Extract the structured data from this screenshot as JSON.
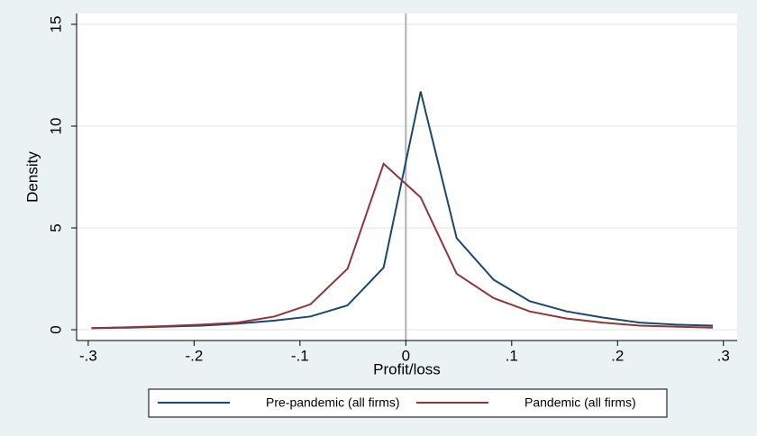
{
  "chart_data": {
    "type": "line",
    "xlabel": "Profit/loss",
    "ylabel": "Density",
    "x": [
      -0.297,
      -0.262,
      -0.228,
      -0.193,
      -0.159,
      -0.124,
      -0.09,
      -0.055,
      -0.021,
      0.014,
      0.048,
      0.083,
      0.117,
      0.152,
      0.186,
      0.221,
      0.255,
      0.29
    ],
    "series": [
      {
        "name": "Pre-pandemic (all firms)",
        "color": "#1a476f",
        "values": [
          0.08,
          0.1,
          0.15,
          0.2,
          0.3,
          0.45,
          0.65,
          1.2,
          3.05,
          11.7,
          4.5,
          2.45,
          1.4,
          0.9,
          0.6,
          0.35,
          0.25,
          0.2
        ]
      },
      {
        "name": "Pandemic (all firms)",
        "color": "#90353b",
        "values": [
          0.08,
          0.12,
          0.18,
          0.25,
          0.35,
          0.65,
          1.25,
          3.0,
          8.15,
          6.5,
          2.75,
          1.55,
          0.9,
          0.55,
          0.35,
          0.2,
          0.15,
          0.1
        ]
      }
    ],
    "xlim": [
      -0.311,
      0.313
    ],
    "ylim": [
      -0.53,
      15.53
    ],
    "xticks": [
      {
        "value": -0.3,
        "label": "-.3"
      },
      {
        "value": -0.2,
        "label": "-.2"
      },
      {
        "value": -0.1,
        "label": "-.1"
      },
      0,
      {
        "value": 0.1,
        "label": ".1"
      },
      {
        "value": 0.2,
        "label": ".2"
      },
      {
        "value": 0.3,
        "label": ".3"
      }
    ],
    "yticks": [
      0,
      5,
      10,
      15
    ],
    "xline": 0,
    "xline_color": "#b0b0b0",
    "grid": true,
    "legend": "bottom"
  }
}
